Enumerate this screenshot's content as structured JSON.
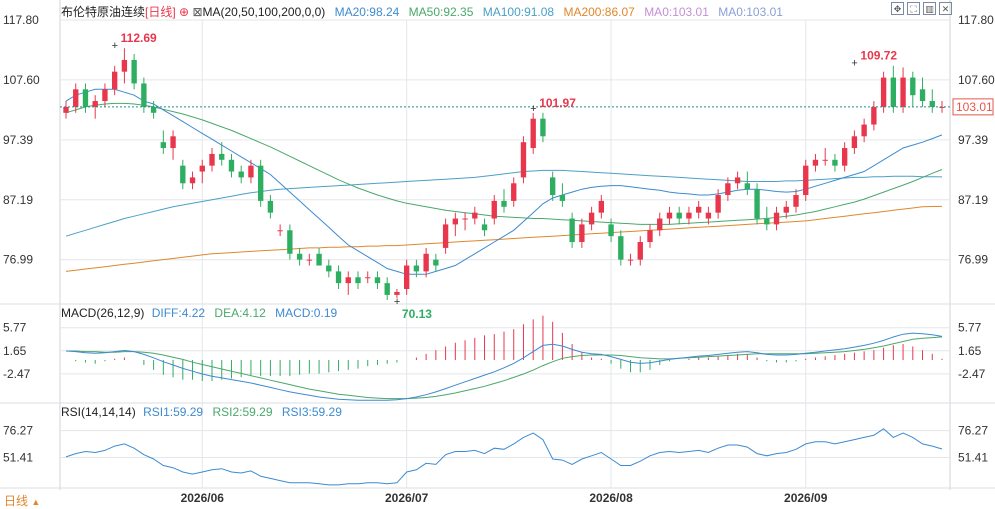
{
  "header": {
    "symbol_name": "布伦特原油连续",
    "period_tag": "[日线]",
    "zoom_icon": "zoom-in-icon",
    "ma_icon": "indicator-settings-icon",
    "ma_title": "MA(20,50,100,200,0,0)",
    "ma_items": [
      {
        "label": "MA20:98.24",
        "color": "#3d8bd0"
      },
      {
        "label": "MA50:92.35",
        "color": "#4aa86b"
      },
      {
        "label": "MA100:91.08",
        "color": "#4aa0c8"
      },
      {
        "label": "MA200:86.07",
        "color": "#e0872c"
      },
      {
        "label": "MA0:103.01",
        "color": "#c48fd6"
      },
      {
        "label": "MA0:103.01",
        "color": "#8b9fd6"
      }
    ],
    "toolbar_icons": [
      "move-icon",
      "fullscreen-icon",
      "split-icon",
      "close-icon"
    ]
  },
  "macd_header": {
    "title": "MACD(26,12,9)",
    "items": [
      {
        "label": "DIFF:4.22",
        "color": "#3d8bd0"
      },
      {
        "label": "DEA:4.12",
        "color": "#4aa86b"
      },
      {
        "label": "MACD:0.19",
        "color": "#3d8bd0"
      }
    ]
  },
  "rsi_header": {
    "title": "RSI(14,14,14)",
    "items": [
      {
        "label": "RSI1:59.29",
        "color": "#3d8bd0"
      },
      {
        "label": "RSI2:59.29",
        "color": "#4aa86b"
      },
      {
        "label": "RSI3:59.29",
        "color": "#3d8bd0"
      }
    ]
  },
  "footer": {
    "period_button": "日线",
    "period_button_icon": "triangle-up-icon"
  },
  "colors": {
    "up": "#e8374c",
    "down": "#2eae61",
    "grid": "#e3e6ea",
    "axis_text": "#333333",
    "current_price": "#e8554c"
  },
  "chart_data": {
    "type": "candlestick",
    "price_axis": {
      "ticks": [
        117.8,
        107.6,
        97.39,
        87.19,
        76.99
      ],
      "range": [
        70.13,
        117.8
      ]
    },
    "x_axis": {
      "ticks": [
        {
          "label": "2026/06",
          "index": 14
        },
        {
          "label": "2026/07",
          "index": 35
        },
        {
          "label": "2026/08",
          "index": 56
        },
        {
          "label": "2026/09",
          "index": 76
        }
      ]
    },
    "annotations": {
      "high_1": {
        "label": "112.69",
        "index": 5,
        "value": 112.69
      },
      "low": {
        "label": "70.13",
        "index": 34,
        "value": 70.13
      },
      "high_2": {
        "label": "101.97",
        "index": 48,
        "value": 101.97
      },
      "high_3": {
        "label": "109.72",
        "index": 81,
        "value": 109.72
      }
    },
    "current_price": {
      "label": "103.01",
      "value": 103.01
    },
    "candles": [
      [
        102,
        104,
        101,
        103
      ],
      [
        103,
        107,
        102,
        106
      ],
      [
        106,
        107,
        102,
        103
      ],
      [
        103,
        105,
        101,
        104
      ],
      [
        104,
        107,
        103,
        106
      ],
      [
        106,
        110,
        105,
        109
      ],
      [
        109,
        113,
        107,
        111
      ],
      [
        111,
        112,
        106,
        107
      ],
      [
        107,
        108,
        102,
        103
      ],
      [
        103,
        104,
        101,
        102
      ],
      [
        97,
        99,
        95,
        96
      ],
      [
        96,
        99,
        94,
        98
      ],
      [
        93,
        94,
        89,
        90
      ],
      [
        90,
        92,
        89,
        91
      ],
      [
        92,
        94,
        90,
        93
      ],
      [
        93,
        96,
        92,
        95
      ],
      [
        95,
        97,
        93,
        94
      ],
      [
        94,
        95,
        91,
        92
      ],
      [
        92,
        93,
        90,
        91
      ],
      [
        91,
        94,
        90,
        93
      ],
      [
        93,
        94,
        86,
        87
      ],
      [
        87,
        88,
        84,
        85
      ],
      [
        82,
        83,
        81,
        82
      ],
      [
        82,
        83,
        77,
        78
      ],
      [
        78,
        79,
        76,
        77
      ],
      [
        77,
        78,
        76,
        77
      ],
      [
        78,
        79,
        76,
        76
      ],
      [
        76,
        77,
        74,
        75
      ],
      [
        75,
        76,
        72,
        73
      ],
      [
        73,
        75,
        71,
        74
      ],
      [
        74,
        75,
        72,
        73
      ],
      [
        74,
        75,
        73,
        74
      ],
      [
        74,
        75,
        72,
        73
      ],
      [
        73,
        74,
        70.13,
        71
      ],
      [
        71,
        72,
        70.5,
        71.5
      ],
      [
        72,
        77,
        71,
        76
      ],
      [
        76,
        77,
        74,
        75
      ],
      [
        75,
        79,
        74,
        78
      ],
      [
        77,
        78,
        75,
        76
      ],
      [
        79,
        84,
        78,
        83
      ],
      [
        83,
        85,
        81,
        84
      ],
      [
        84,
        85,
        82,
        84
      ],
      [
        84,
        86,
        83,
        85
      ],
      [
        83,
        84,
        81,
        82
      ],
      [
        84,
        88,
        83,
        87
      ],
      [
        87,
        89,
        85,
        86
      ],
      [
        87,
        91,
        86,
        90
      ],
      [
        91,
        98,
        90,
        97
      ],
      [
        96,
        101.97,
        95,
        101
      ],
      [
        101,
        102,
        97,
        98
      ],
      [
        91,
        92,
        87,
        88
      ],
      [
        88,
        90,
        86,
        87
      ],
      [
        84,
        85,
        79,
        80
      ],
      [
        80,
        84,
        79,
        83
      ],
      [
        83,
        86,
        82,
        85
      ],
      [
        85,
        88,
        84,
        87
      ],
      [
        83,
        84,
        80,
        81
      ],
      [
        81,
        82,
        76,
        77
      ],
      [
        77,
        78,
        76,
        77
      ],
      [
        77,
        81,
        76,
        80
      ],
      [
        80,
        83,
        79,
        82
      ],
      [
        82,
        85,
        81,
        84
      ],
      [
        84,
        86,
        83,
        85
      ],
      [
        85,
        86,
        83,
        84
      ],
      [
        84,
        86,
        83,
        85
      ],
      [
        85,
        87,
        84,
        86
      ],
      [
        84,
        86,
        83,
        85
      ],
      [
        85,
        89,
        84,
        88
      ],
      [
        88,
        91,
        87,
        90
      ],
      [
        90,
        92,
        89,
        91
      ],
      [
        90,
        92,
        88,
        89
      ],
      [
        89,
        90,
        83,
        84
      ],
      [
        84,
        86,
        82,
        83
      ],
      [
        83,
        86,
        82,
        85
      ],
      [
        85,
        87,
        84,
        86
      ],
      [
        86,
        89,
        85,
        88
      ],
      [
        88,
        94,
        87,
        93
      ],
      [
        93,
        95,
        92,
        94
      ],
      [
        94,
        96,
        93,
        94
      ],
      [
        94,
        95,
        92,
        93
      ],
      [
        93,
        97,
        92,
        96
      ],
      [
        96,
        99,
        95,
        98
      ],
      [
        98,
        101,
        97,
        100
      ],
      [
        100,
        104,
        99,
        103
      ],
      [
        103,
        109,
        102,
        108
      ],
      [
        108,
        110,
        102,
        103
      ],
      [
        103,
        109.72,
        102,
        108
      ],
      [
        108,
        109,
        103,
        105
      ],
      [
        106,
        108,
        103,
        104
      ],
      [
        104,
        106,
        102,
        103
      ],
      [
        103,
        104,
        102,
        103
      ]
    ],
    "ma20": [
      104,
      105,
      105.5,
      106,
      106,
      106,
      105.5,
      105,
      104,
      103.5,
      102.5,
      101.5,
      100.5,
      99.5,
      98.5,
      97.5,
      96.5,
      95.5,
      94.5,
      93.5,
      92.5,
      91.5,
      90,
      88.5,
      87,
      85.5,
      84,
      82.5,
      81,
      79.5,
      78.5,
      77.5,
      76.5,
      75.5,
      75,
      74.5,
      74.5,
      74.5,
      75,
      75.5,
      76,
      77,
      78,
      79,
      80,
      81,
      82,
      83.5,
      85,
      86.5,
      87.5,
      88,
      88.5,
      89,
      89.3,
      89.5,
      89.6,
      89.6,
      89.4,
      89.2,
      89,
      88.8,
      88.5,
      88.3,
      88.2,
      88,
      88,
      88.2,
      88.5,
      88.8,
      89,
      89,
      88.8,
      88.6,
      88.5,
      88.6,
      89,
      89.5,
      90,
      90.5,
      91,
      91.5,
      92,
      93,
      94,
      95,
      96,
      96.5,
      97,
      97.6,
      98.24
    ],
    "ma50": [
      102,
      102.5,
      103,
      103.3,
      103.5,
      103.6,
      103.6,
      103.5,
      103.3,
      103,
      102.6,
      102.2,
      101.8,
      101.3,
      100.8,
      100.2,
      99.6,
      99,
      98.3,
      97.6,
      96.9,
      96.2,
      95.4,
      94.6,
      93.8,
      93,
      92.2,
      91.4,
      90.6,
      89.9,
      89.2,
      88.6,
      88,
      87.5,
      87,
      86.6,
      86.3,
      86,
      85.7,
      85.4,
      85.2,
      85,
      84.8,
      84.6,
      84.4,
      84.3,
      84.2,
      84.1,
      84,
      84,
      83.9,
      83.8,
      83.7,
      83.6,
      83.5,
      83.4,
      83.3,
      83.2,
      83.1,
      83,
      83,
      83,
      83,
      83.1,
      83.2,
      83.3,
      83.4,
      83.5,
      83.6,
      83.7,
      83.8,
      83.9,
      84,
      84.2,
      84.4,
      84.6,
      84.9,
      85.2,
      85.6,
      86,
      86.4,
      86.8,
      87.3,
      87.9,
      88.5,
      89.1,
      89.7,
      90.3,
      91,
      91.7,
      92.35
    ],
    "ma100": [
      81,
      81.5,
      82,
      82.5,
      83,
      83.5,
      84,
      84.4,
      84.8,
      85.2,
      85.6,
      86,
      86.3,
      86.6,
      86.9,
      87.2,
      87.5,
      87.8,
      88.1,
      88.4,
      88.6,
      88.8,
      89,
      89.1,
      89.2,
      89.3,
      89.4,
      89.5,
      89.6,
      89.7,
      89.8,
      89.9,
      90,
      90.1,
      90.2,
      90.3,
      90.4,
      90.5,
      90.6,
      90.7,
      90.8,
      90.9,
      91,
      91.2,
      91.4,
      91.6,
      91.8,
      92,
      92.1,
      92.2,
      92.2,
      92.2,
      92.1,
      92,
      91.9,
      91.8,
      91.7,
      91.6,
      91.5,
      91.4,
      91.3,
      91.2,
      91.1,
      91,
      90.9,
      90.8,
      90.7,
      90.6,
      90.5,
      90.4,
      90.3,
      90.3,
      90.3,
      90.3,
      90.4,
      90.4,
      90.5,
      90.6,
      90.7,
      90.8,
      90.9,
      91,
      91,
      91.1,
      91.1,
      91.2,
      91.2,
      91.2,
      91.1,
      91.1,
      91.08
    ],
    "ma200": [
      75,
      75.2,
      75.4,
      75.6,
      75.8,
      76,
      76.2,
      76.4,
      76.6,
      76.8,
      77,
      77.2,
      77.4,
      77.6,
      77.8,
      78,
      78.1,
      78.2,
      78.3,
      78.4,
      78.5,
      78.6,
      78.7,
      78.8,
      78.9,
      79,
      79,
      79.1,
      79.1,
      79.2,
      79.2,
      79.3,
      79.3,
      79.4,
      79.4,
      79.5,
      79.6,
      79.7,
      79.8,
      79.9,
      80,
      80.1,
      80.2,
      80.3,
      80.4,
      80.5,
      80.6,
      80.7,
      80.8,
      80.9,
      81,
      81.1,
      81.2,
      81.3,
      81.4,
      81.5,
      81.6,
      81.7,
      81.8,
      81.9,
      82,
      82.1,
      82.2,
      82.3,
      82.4,
      82.5,
      82.6,
      82.7,
      82.8,
      82.9,
      83,
      83.1,
      83.2,
      83.3,
      83.4,
      83.5,
      83.6,
      83.8,
      84,
      84.2,
      84.4,
      84.6,
      84.8,
      85,
      85.2,
      85.4,
      85.6,
      85.8,
      86,
      86.05,
      86.07
    ],
    "macd": {
      "ticks": [
        5.77,
        1.65,
        -2.47
      ],
      "range": [
        -7.5,
        7.5
      ],
      "diff": [
        1.6,
        1.5,
        1.3,
        1.2,
        1.3,
        1.5,
        1.7,
        1.5,
        1.0,
        0.4,
        -0.3,
        -0.9,
        -1.5,
        -2.0,
        -2.5,
        -2.9,
        -3.2,
        -3.5,
        -3.8,
        -4.1,
        -4.5,
        -4.9,
        -5.3,
        -5.7,
        -6.0,
        -6.3,
        -6.6,
        -6.8,
        -7.0,
        -7.1,
        -7.2,
        -7.2,
        -7.2,
        -7.2,
        -7.1,
        -6.9,
        -6.6,
        -6.2,
        -5.7,
        -5.1,
        -4.5,
        -3.9,
        -3.3,
        -2.7,
        -2.1,
        -1.4,
        -0.6,
        0.4,
        1.5,
        2.6,
        2.8,
        2.5,
        1.9,
        1.4,
        1.1,
        1.0,
        0.6,
        0.1,
        -0.4,
        -0.6,
        -0.5,
        -0.2,
        0.1,
        0.3,
        0.5,
        0.7,
        0.8,
        1.0,
        1.2,
        1.4,
        1.5,
        1.3,
        1.0,
        0.9,
        0.9,
        1.0,
        1.2,
        1.4,
        1.6,
        1.8,
        2.0,
        2.3,
        2.6,
        3.0,
        3.5,
        4.1,
        4.6,
        4.8,
        4.7,
        4.5,
        4.22
      ],
      "dea": [
        1.6,
        1.6,
        1.5,
        1.5,
        1.4,
        1.4,
        1.5,
        1.5,
        1.4,
        1.2,
        0.9,
        0.5,
        0.1,
        -0.4,
        -0.8,
        -1.2,
        -1.6,
        -2.0,
        -2.4,
        -2.8,
        -3.2,
        -3.6,
        -4.0,
        -4.4,
        -4.8,
        -5.2,
        -5.5,
        -5.8,
        -6.1,
        -6.3,
        -6.5,
        -6.7,
        -6.8,
        -6.9,
        -6.9,
        -6.9,
        -6.8,
        -6.7,
        -6.5,
        -6.2,
        -5.9,
        -5.5,
        -5.1,
        -4.7,
        -4.2,
        -3.7,
        -3.1,
        -2.5,
        -1.8,
        -1.0,
        -0.3,
        0.3,
        0.6,
        0.8,
        0.9,
        0.9,
        0.9,
        0.8,
        0.6,
        0.4,
        0.3,
        0.2,
        0.2,
        0.3,
        0.4,
        0.5,
        0.6,
        0.7,
        0.8,
        0.9,
        1.0,
        1.1,
        1.1,
        1.1,
        1.1,
        1.1,
        1.1,
        1.2,
        1.3,
        1.4,
        1.5,
        1.7,
        1.9,
        2.2,
        2.5,
        2.9,
        3.3,
        3.7,
        3.9,
        4.0,
        4.12
      ]
    },
    "rsi": {
      "ticks": [
        76.27,
        51.41
      ],
      "range": [
        25,
        88
      ],
      "values": [
        52,
        55,
        57,
        56,
        58,
        62,
        64,
        60,
        54,
        50,
        44,
        42,
        38,
        36,
        38,
        40,
        41,
        38,
        37,
        39,
        34,
        32,
        30,
        28,
        28,
        28,
        27,
        26,
        26,
        27,
        27,
        28,
        28,
        27,
        28,
        38,
        40,
        46,
        45,
        54,
        57,
        57,
        58,
        55,
        60,
        59,
        64,
        70,
        74,
        68,
        50,
        49,
        45,
        50,
        53,
        56,
        50,
        44,
        44,
        48,
        53,
        56,
        57,
        56,
        57,
        58,
        56,
        60,
        63,
        63,
        61,
        55,
        53,
        55,
        56,
        59,
        64,
        66,
        66,
        64,
        66,
        68,
        70,
        72,
        78,
        70,
        74,
        70,
        64,
        62,
        59.29
      ]
    }
  }
}
